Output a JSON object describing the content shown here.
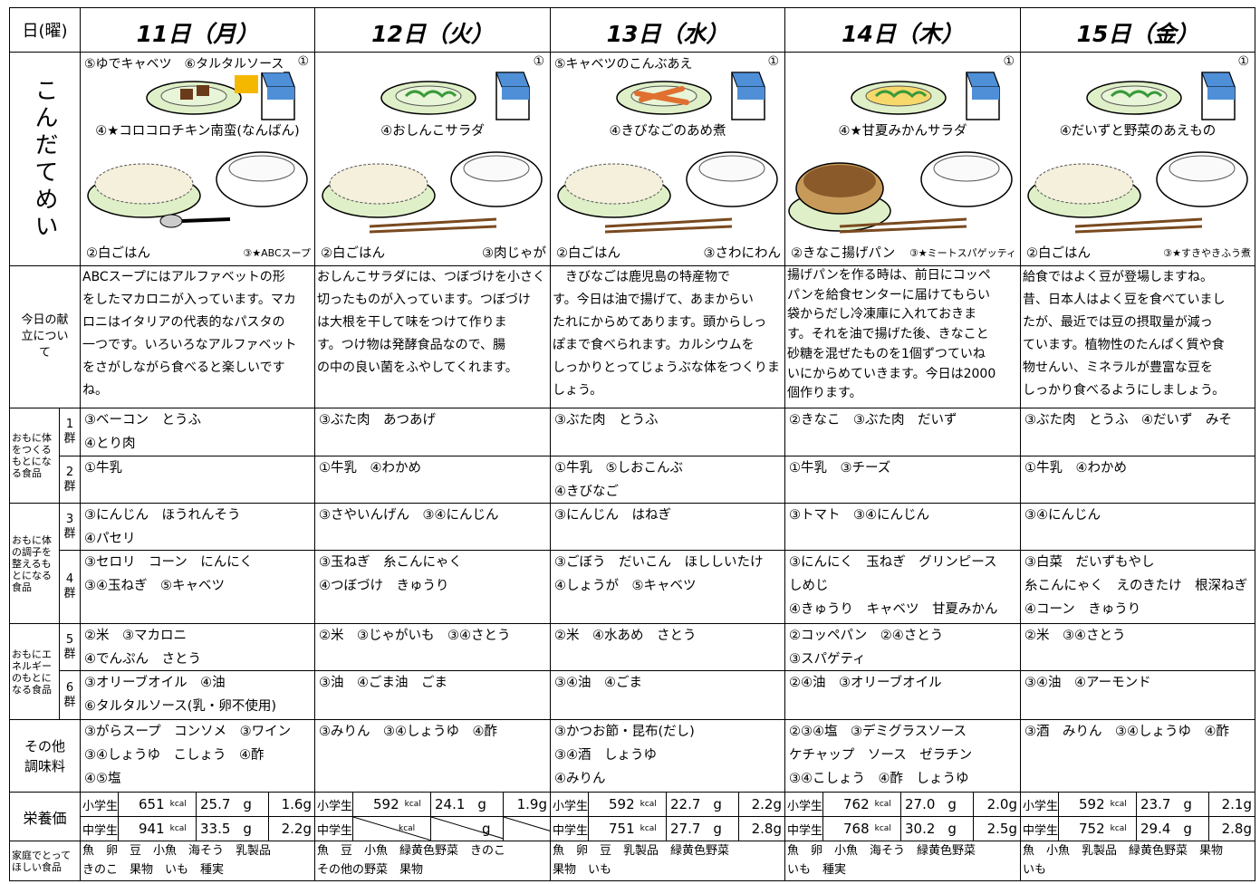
{
  "header_label": "日(曜)",
  "row_labels": {
    "menu": "こんだてめい",
    "about": "今日の献立について",
    "group_a": "おもに体をつくるもとになる食品",
    "group_b": "おもに体の調子を整えるもとになる食品",
    "group_c": "おもにエネルギーのもとになる食品",
    "groups": [
      "1群",
      "2群",
      "3群",
      "4群",
      "5群",
      "6群"
    ],
    "seasoning": "その他調味料",
    "nutrition": "栄養価",
    "family": "家庭でとってほしい食品"
  },
  "levels": [
    "小学生",
    "中学生"
  ],
  "units": {
    "energy": "kcal",
    "protein": "g"
  },
  "days": [
    {
      "title": "11日（月）",
      "dishes": {
        "side_note": "⑤ゆでキャベツ　⑥タルタルソース",
        "milk": "①",
        "side": "④★コロコロチキン南蛮(なんばん)",
        "staple": "②白ごはん",
        "main": "③★ABCスープ"
      },
      "description": [
        "ABCスープにはアルファベットの形",
        "をしたマカロニが入っています。マカ",
        "ロニはイタリアの代表的なパスタの",
        "一つです。いろいろなアルファベット",
        "をさがしながら食べると楽しいです",
        "ね。"
      ],
      "groups": [
        [
          "③ベーコン　とうふ",
          "④とり肉"
        ],
        [
          "①牛乳"
        ],
        [
          "③にんじん　ほうれんそう",
          "④パセリ"
        ],
        [
          "③セロリ　コーン　にんにく",
          "③④玉ねぎ　⑤キャベツ"
        ],
        [
          "②米　③マカロニ",
          "④でんぷん　さとう"
        ],
        [
          "③オリーブオイル　④油",
          "⑥タルタルソース(乳・卵不使用)"
        ]
      ],
      "seasoning": [
        "③がらスープ　コンソメ　③ワイン",
        "③④しょうゆ　こしょう　④酢",
        "④⑤塩"
      ],
      "nutrition": [
        {
          "energy": "651",
          "protein": "25.7",
          "salt": "1.6g"
        },
        {
          "energy": "941",
          "protein": "33.5",
          "salt": "2.2g"
        }
      ],
      "family": [
        "魚　卵　豆　小魚　海そう　乳製品",
        "きのこ　果物　いも　種実"
      ]
    },
    {
      "title": "12日（火）",
      "dishes": {
        "milk": "①",
        "side": "④おしんこサラダ",
        "staple": "②白ごはん",
        "main": "③肉じゃが"
      },
      "description": [
        "おしんこサラダには、つぼづけを小さく",
        "切ったものが入っています。つぼづけ",
        "は大根を干して味をつけて作りま",
        "す。つけ物は発酵食品なので、腸",
        "の中の良い菌をふやしてくれます。"
      ],
      "groups": [
        [
          "③ぶた肉　あつあげ"
        ],
        [
          "①牛乳　④わかめ"
        ],
        [
          "③さやいんげん　③④にんじん"
        ],
        [
          "③玉ねぎ　糸こんにゃく",
          "④つぼづけ　きゅうり"
        ],
        [
          "②米　③じゃがいも　③④さとう"
        ],
        [
          "③油　④ごま油　ごま"
        ]
      ],
      "seasoning": [
        "③みりん　③④しょうゆ　④酢"
      ],
      "nutrition": [
        {
          "energy": "592",
          "protein": "24.1",
          "salt": "1.9g"
        },
        null
      ],
      "family": [
        "魚　豆　小魚　緑黄色野菜　きのこ",
        "その他の野菜　果物"
      ]
    },
    {
      "title": "13日（水）",
      "dishes": {
        "side_note": "⑤キャベツのこんぶあえ",
        "milk": "①",
        "side": "④きびなごのあめ煮",
        "staple": "②白ごはん",
        "main": "③さわにわん"
      },
      "description": [
        "　きびなごは鹿児島の特産物で",
        "す。今日は油で揚げて、あまからい",
        "たれにからめてあります。頭からしっ",
        "ぽまで食べられます。カルシウムを",
        "しっかりとってじょうぶな体をつくりま",
        "しょう。"
      ],
      "groups": [
        [
          "③ぶた肉　とうふ"
        ],
        [
          "①牛乳　⑤しおこんぶ",
          "④きびなご"
        ],
        [
          "③にんじん　はねぎ"
        ],
        [
          "③ごぼう　だいこん　ほししいたけ",
          "④しょうが　⑤キャベツ"
        ],
        [
          "②米　④水あめ　さとう"
        ],
        [
          "③④油　④ごま"
        ]
      ],
      "seasoning": [
        "③かつお節・昆布(だし)",
        "③④酒　しょうゆ",
        "④みりん"
      ],
      "nutrition": [
        {
          "energy": "592",
          "protein": "22.7",
          "salt": "2.2g"
        },
        {
          "energy": "751",
          "protein": "27.7",
          "salt": "2.8g"
        }
      ],
      "family": [
        "魚　卵　豆　乳製品　緑黄色野菜",
        "果物　いも"
      ]
    },
    {
      "title": "14日（木）",
      "dishes": {
        "milk": "①",
        "side": "④★甘夏みかんサラダ",
        "staple": "②きなこ揚げパン",
        "main": "③★ミートスパゲッティ"
      },
      "description": [
        "揚げパンを作る時は、前日にコッペ",
        "パンを給食センターに届けてもらい",
        "袋からだし冷凍庫に入れておきま",
        "す。それを油で揚げた後、きなこと",
        "砂糖を混ぜたものを1個ずつていね",
        "いにからめていきます。今日は2000",
        "個作ります。"
      ],
      "groups": [
        [
          "②きなこ　③ぶた肉　だいず"
        ],
        [
          "①牛乳　③チーズ"
        ],
        [
          "③トマト　③④にんじん"
        ],
        [
          "③にんにく　玉ねぎ　グリンピース",
          "しめじ",
          "④きゅうり　キャベツ　甘夏みかん"
        ],
        [
          "②コッペパン　②④さとう",
          "③スパゲティ"
        ],
        [
          "②④油　③オリーブオイル"
        ]
      ],
      "seasoning": [
        "②③④塩　③デミグラスソース",
        "ケチャップ　ソース　ゼラチン",
        "③④こしょう　④酢　しょうゆ"
      ],
      "nutrition": [
        {
          "energy": "762",
          "protein": "27.0",
          "salt": "2.0g"
        },
        {
          "energy": "768",
          "protein": "30.2",
          "salt": "2.5g"
        }
      ],
      "family": [
        "魚　卵　小魚　海そう　緑黄色野菜",
        "いも　種実"
      ]
    },
    {
      "title": "15日（金）",
      "dishes": {
        "milk": "①",
        "side": "④だいずと野菜のあえもの",
        "staple": "②白ごはん",
        "main": "③★すきやきふう煮"
      },
      "description": [
        "給食ではよく豆が登場しますね。",
        "昔、日本人はよく豆を食べていまし",
        "たが、最近では豆の摂取量が減っ",
        "ています。植物性のたんぱく質や食",
        "物せんい、ミネラルが豊富な豆を",
        "しっかり食べるようにしましょう。"
      ],
      "groups": [
        [
          "③ぶた肉　とうふ　④だいず　みそ"
        ],
        [
          "①牛乳　④わかめ"
        ],
        [
          "③④にんじん"
        ],
        [
          "③白菜　だいずもやし",
          "糸こんにゃく　えのきたけ　根深ねぎ",
          "④コーン　きゅうり"
        ],
        [
          "②米　③④さとう"
        ],
        [
          "③④油　④アーモンド"
        ]
      ],
      "seasoning": [
        "③酒　みりん　③④しょうゆ　④酢"
      ],
      "nutrition": [
        {
          "energy": "592",
          "protein": "23.7",
          "salt": "2.1g"
        },
        {
          "energy": "752",
          "protein": "29.4",
          "salt": "2.8g"
        }
      ],
      "family": [
        "魚　小魚　乳製品　緑黄色野菜　果物",
        "いも"
      ]
    }
  ]
}
